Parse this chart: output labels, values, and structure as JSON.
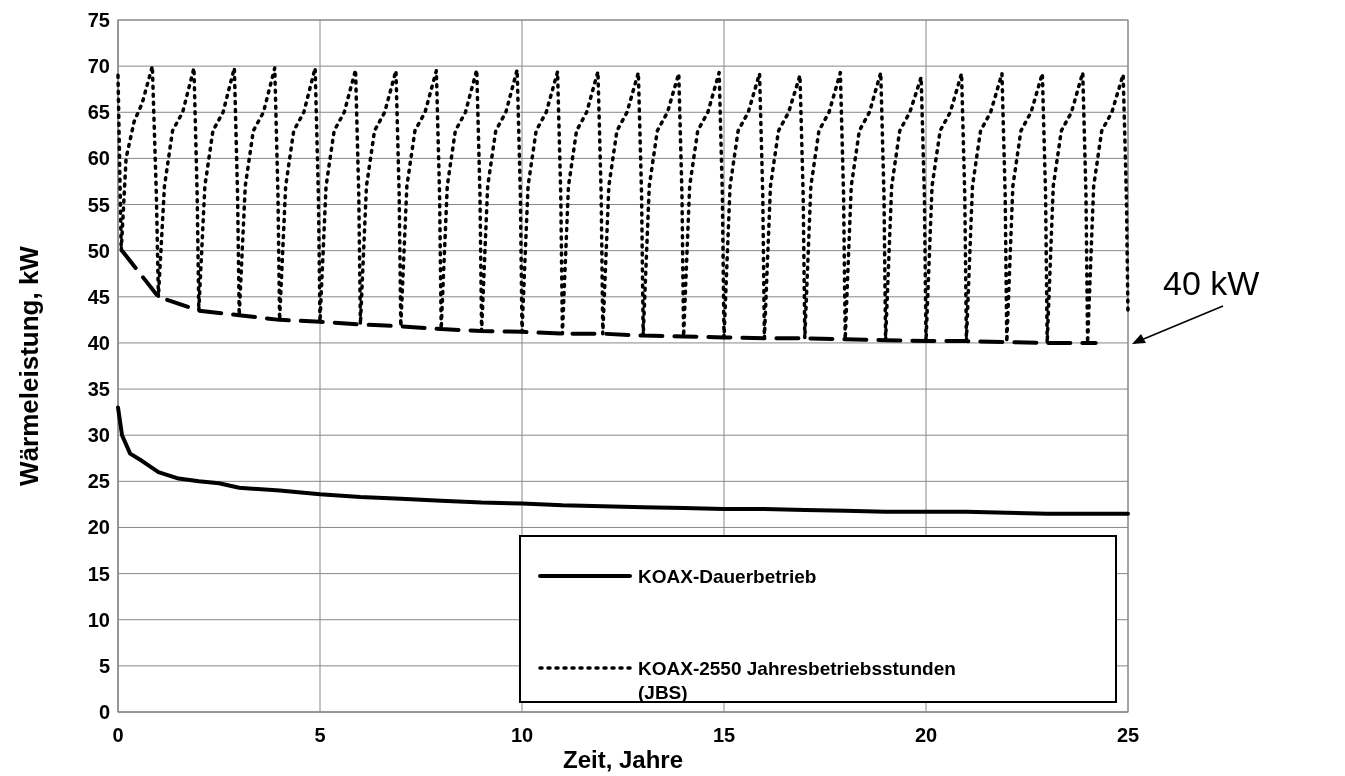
{
  "chart_data": {
    "type": "line",
    "xlabel": "Zeit, Jahre",
    "ylabel": "Wärmeleistung, kW",
    "xlim": [
      0,
      25
    ],
    "ylim": [
      0,
      75
    ],
    "xticks": [
      0,
      5,
      10,
      15,
      20,
      25
    ],
    "yticks": [
      0,
      5,
      10,
      15,
      20,
      25,
      30,
      35,
      40,
      45,
      50,
      55,
      60,
      65,
      70,
      75
    ],
    "grid": true,
    "legend": "bottom right",
    "annotations": [
      "40 kW"
    ],
    "series": [
      {
        "name": "KOAX-Dauerbetrieb",
        "color": "#000000",
        "line_style": "solid",
        "x": [
          0,
          0.1,
          0.3,
          0.6,
          1,
          1.5,
          2,
          2.5,
          3,
          4,
          5,
          6,
          7,
          8,
          9,
          10,
          11,
          12,
          13,
          14,
          15,
          16,
          17,
          18,
          19,
          20,
          21,
          22,
          23,
          24,
          25
        ],
        "values": [
          33,
          30,
          28,
          27.2,
          26,
          25.3,
          25,
          24.8,
          24.3,
          24,
          23.6,
          23.3,
          23.1,
          22.9,
          22.7,
          22.6,
          22.4,
          22.3,
          22.2,
          22.1,
          22,
          22,
          21.9,
          21.8,
          21.7,
          21.7,
          21.7,
          21.6,
          21.5,
          21.5,
          21.5
        ]
      },
      {
        "name": "KOAX-2550 Jahresbetriebsstunden (JBS)",
        "color": "#000000",
        "line_style": "dotted",
        "x": [
          0,
          0.08,
          0.2,
          0.4,
          0.6,
          0.85,
          0.95,
          1,
          1.15,
          1.35,
          1.6,
          1.88,
          1.96,
          2,
          2.15,
          2.35,
          2.6,
          2.88,
          2.96,
          3,
          3.15,
          3.35,
          3.6,
          3.88,
          3.96,
          4,
          4.15,
          4.35,
          4.6,
          4.88,
          4.96,
          5,
          5.15,
          5.35,
          5.6,
          5.88,
          5.96,
          6,
          6.15,
          6.35,
          6.6,
          6.88,
          6.96,
          7,
          7.15,
          7.35,
          7.6,
          7.88,
          7.96,
          8,
          8.15,
          8.35,
          8.6,
          8.88,
          8.96,
          9,
          9.15,
          9.35,
          9.6,
          9.88,
          9.96,
          10,
          10.15,
          10.35,
          10.6,
          10.88,
          10.96,
          11,
          11.15,
          11.35,
          11.6,
          11.88,
          11.96,
          12,
          12.15,
          12.35,
          12.6,
          12.88,
          12.96,
          13,
          13.15,
          13.35,
          13.6,
          13.88,
          13.96,
          14,
          14.15,
          14.35,
          14.6,
          14.88,
          14.96,
          15,
          15.15,
          15.35,
          15.6,
          15.88,
          15.96,
          16,
          16.15,
          16.35,
          16.6,
          16.88,
          16.96,
          17,
          17.15,
          17.35,
          17.6,
          17.88,
          17.96,
          18,
          18.15,
          18.35,
          18.6,
          18.88,
          18.96,
          19,
          19.15,
          19.35,
          19.6,
          19.88,
          19.96,
          20,
          20.15,
          20.35,
          20.6,
          20.88,
          20.96,
          21,
          21.15,
          21.35,
          21.6,
          21.88,
          21.96,
          22,
          22.15,
          22.35,
          22.6,
          22.88,
          22.96,
          23,
          23.15,
          23.35,
          23.6,
          23.88,
          23.96,
          24,
          24.15,
          24.35,
          24.6,
          24.88,
          24.96,
          25
        ],
        "values": [
          69,
          50,
          60,
          64,
          66,
          70,
          56,
          45,
          57,
          63,
          65,
          69.8,
          56,
          43.5,
          57,
          63,
          65,
          69.8,
          56,
          43,
          57,
          63,
          65,
          69.8,
          56,
          42.5,
          57,
          63,
          65,
          69.8,
          56,
          42.3,
          57,
          63,
          65,
          69.6,
          56,
          42,
          57,
          63,
          65,
          69.5,
          56,
          41.8,
          57,
          63,
          65,
          69.5,
          56,
          41.5,
          57,
          63,
          65,
          69.6,
          56,
          41.3,
          57,
          63,
          65,
          69.6,
          56,
          41.2,
          57,
          63,
          65,
          69.4,
          56,
          41,
          57,
          63,
          65,
          69.4,
          56,
          41,
          57,
          63,
          65,
          69.3,
          56,
          40.8,
          57,
          63,
          65,
          69.2,
          56,
          40.7,
          57,
          63,
          65,
          69.3,
          56,
          40.6,
          57,
          63,
          65,
          69.2,
          56,
          40.5,
          57,
          63,
          65,
          69,
          56,
          40.5,
          57,
          63,
          65,
          69.3,
          56,
          40.4,
          57,
          63,
          65,
          69.3,
          56,
          40.3,
          57,
          63,
          65,
          68.8,
          56,
          40.2,
          57,
          63,
          65,
          69.2,
          56,
          40.2,
          57,
          63,
          65,
          69.2,
          56,
          40.1,
          57,
          63,
          65,
          69.2,
          56,
          40,
          57,
          63,
          65,
          69.3,
          56,
          40,
          57,
          63,
          65,
          69.1,
          56,
          43
        ]
      },
      {
        "color": "#000000",
        "line_style": "dashed",
        "x": [
          0.1,
          1,
          2,
          3,
          4,
          5,
          6,
          7,
          8,
          9,
          10,
          11,
          12,
          13,
          14,
          15,
          16,
          17,
          18,
          19,
          20,
          21,
          22,
          23,
          24.2
        ],
        "values": [
          50,
          45,
          43.5,
          43,
          42.5,
          42.3,
          42,
          41.8,
          41.5,
          41.3,
          41.2,
          41,
          41,
          40.8,
          40.7,
          40.6,
          40.5,
          40.5,
          40.4,
          40.3,
          40.2,
          40.2,
          40.1,
          40,
          40
        ]
      }
    ]
  }
}
